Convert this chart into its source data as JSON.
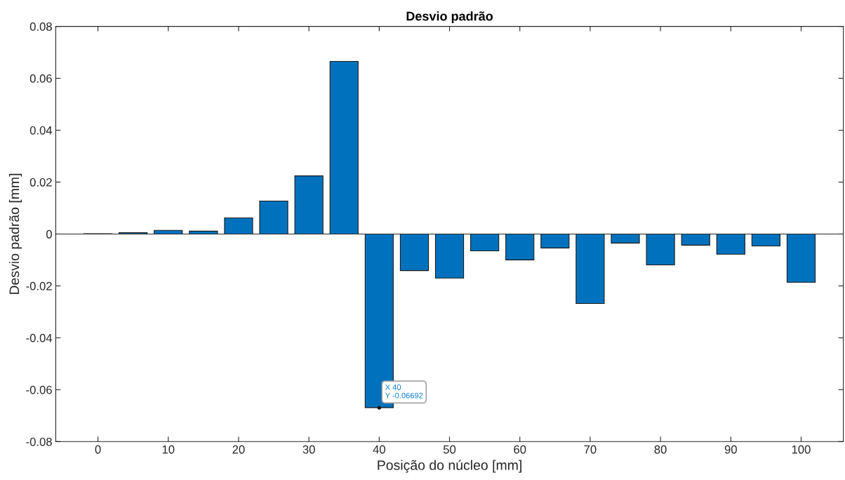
{
  "chart_data": {
    "type": "bar",
    "title": "Desvio padrão",
    "xlabel": "Posição do núcleo [mm]",
    "ylabel": "Desvio padrão [mm]",
    "x": [
      0,
      5,
      10,
      15,
      20,
      25,
      30,
      35,
      40,
      45,
      50,
      55,
      60,
      65,
      70,
      75,
      80,
      85,
      90,
      95,
      100
    ],
    "values": [
      0.0001,
      0.0005,
      0.0014,
      0.0011,
      0.0062,
      0.0127,
      0.0224,
      0.0665,
      -0.06692,
      -0.0141,
      -0.017,
      -0.0065,
      -0.01,
      -0.0054,
      -0.0268,
      -0.0035,
      -0.0119,
      -0.0043,
      -0.0078,
      -0.0046,
      -0.0186
    ],
    "color": "#0072bd",
    "xlim": [
      -6,
      106
    ],
    "xticks": [
      0,
      10,
      20,
      30,
      40,
      50,
      60,
      70,
      80,
      90,
      100
    ],
    "ylim": [
      -0.08,
      0.08
    ],
    "yticks": [
      -0.08,
      -0.06,
      -0.04,
      -0.02,
      0,
      0.02,
      0.04,
      0.06,
      0.08
    ],
    "grid": false,
    "ref_lines": [
      {
        "axis": "y",
        "value": 0,
        "color": "#262626"
      }
    ],
    "annotations": [
      {
        "text": "X 40\nY -0.06692",
        "x": 40,
        "y": -0.06692
      }
    ]
  }
}
